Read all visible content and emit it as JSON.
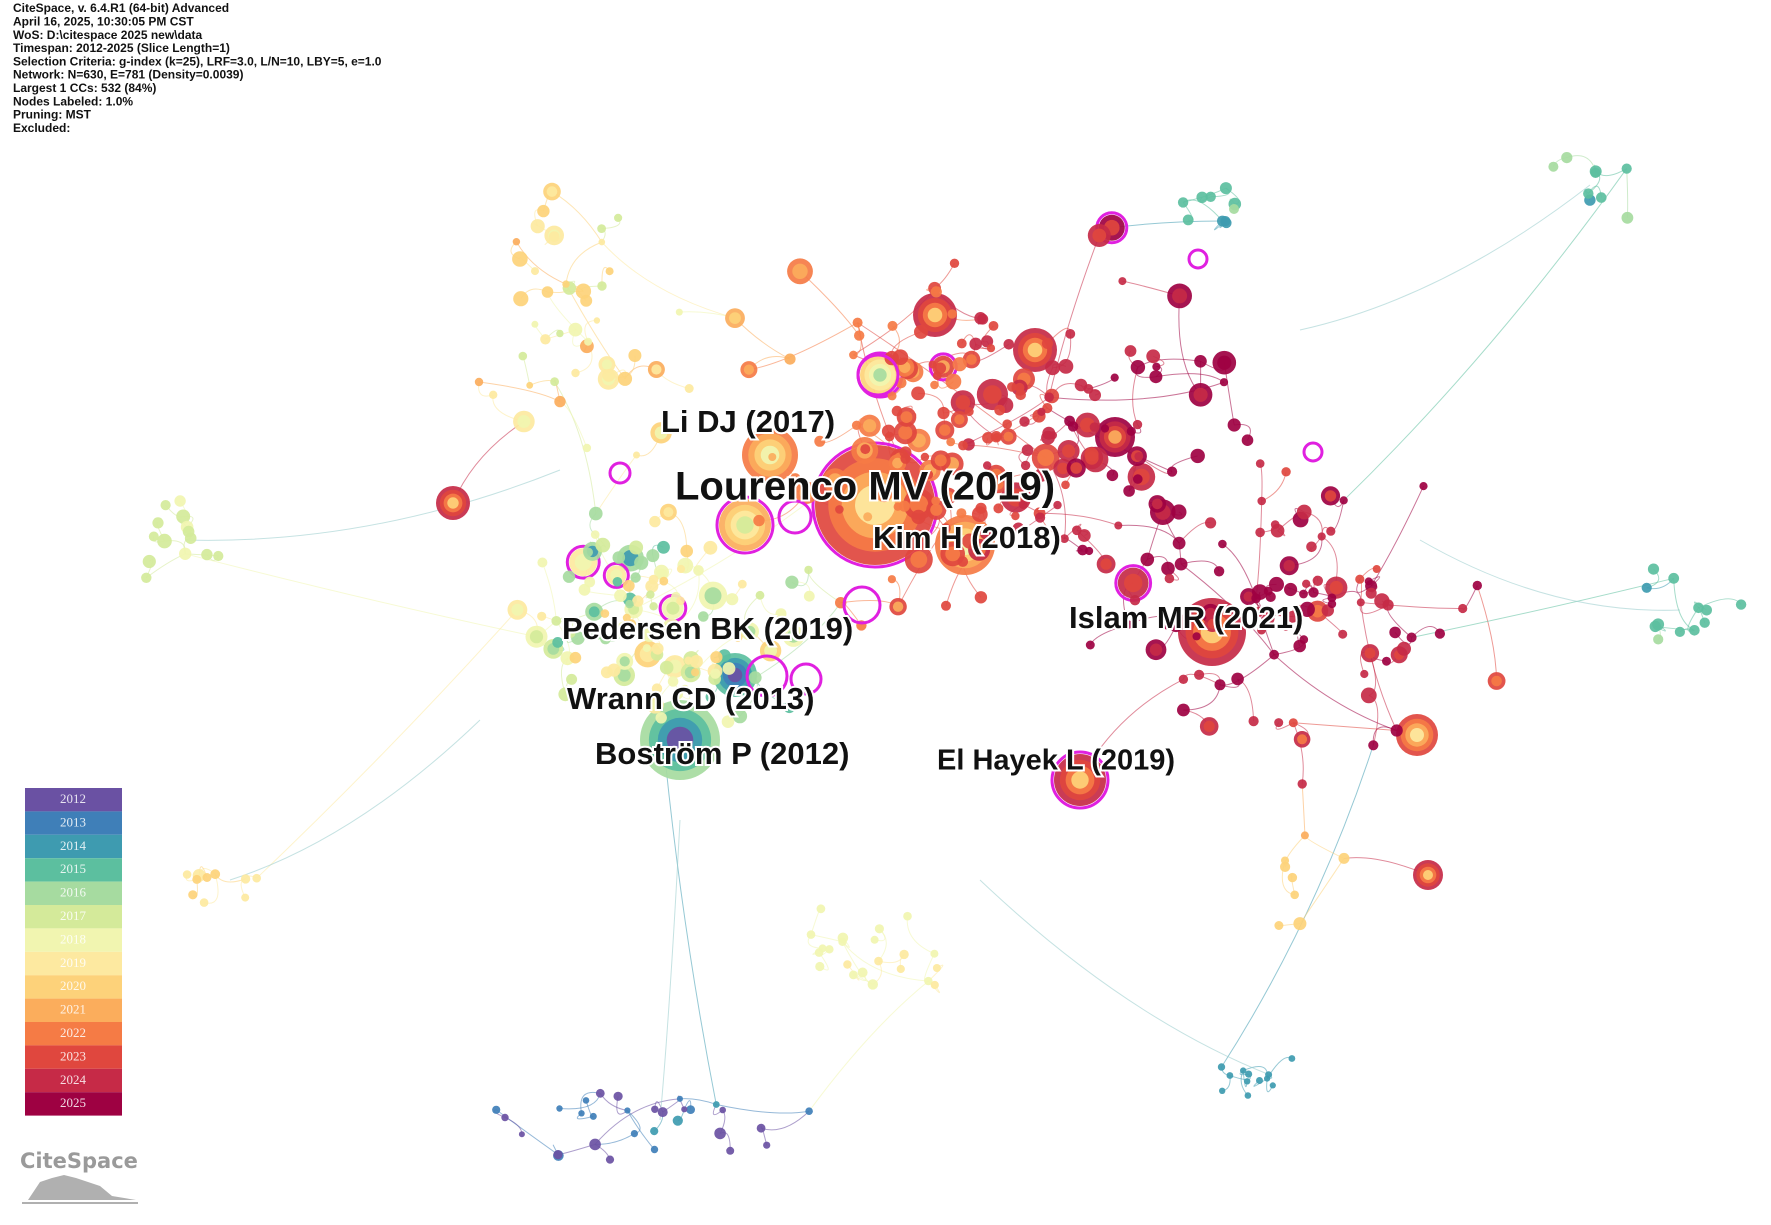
{
  "header": {
    "lines": [
      "CiteSpace, v. 6.4.R1 (64-bit) Advanced",
      "April 16, 2025, 10:30:05 PM CST",
      "WoS: D:\\citespace 2025 new\\data",
      "Timespan: 2012-2025 (Slice Length=1)",
      "Selection Criteria: g-index (k=25), LRF=3.0, L/N=10, LBY=5, e=1.0",
      "Network: N=630, E=781 (Density=0.0039)",
      "Largest 1 CCs: 532 (84%)",
      "Nodes Labeled: 1.0%",
      "Pruning: MST",
      "Excluded:"
    ]
  },
  "labels": [
    "Li DJ (2017)",
    "Lourenco MV (2019)",
    "Kim H (2018)",
    "Islam MR (2021)",
    "Pedersen BK (2019)",
    "Wrann CD (2013)",
    "Boström P (2012)",
    "El Hayek L (2019)"
  ],
  "legend": {
    "years": [
      {
        "label": "2012",
        "color": "#6a51a3"
      },
      {
        "label": "2013",
        "color": "#3f7fb8"
      },
      {
        "label": "2014",
        "color": "#3e9bb0"
      },
      {
        "label": "2015",
        "color": "#5cbf9f"
      },
      {
        "label": "2016",
        "color": "#a6dba0"
      },
      {
        "label": "2017",
        "color": "#d4ea9a"
      },
      {
        "label": "2018",
        "color": "#f1f5b0"
      },
      {
        "label": "2019",
        "color": "#fde9a0"
      },
      {
        "label": "2020",
        "color": "#fdd27a"
      },
      {
        "label": "2021",
        "color": "#fbad5c"
      },
      {
        "label": "2022",
        "color": "#f57b45"
      },
      {
        "label": "2023",
        "color": "#e0473e"
      },
      {
        "label": "2024",
        "color": "#c62a47"
      },
      {
        "label": "2025",
        "color": "#9e0142"
      }
    ]
  },
  "logo": "CiteSpace"
}
